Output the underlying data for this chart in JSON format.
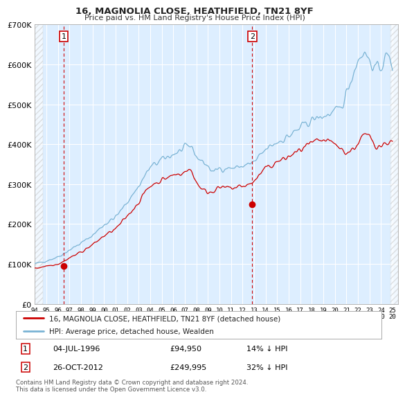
{
  "title": "16, MAGNOLIA CLOSE, HEATHFIELD, TN21 8YF",
  "subtitle": "Price paid vs. HM Land Registry's House Price Index (HPI)",
  "legend_line1": "16, MAGNOLIA CLOSE, HEATHFIELD, TN21 8YF (detached house)",
  "legend_line2": "HPI: Average price, detached house, Wealden",
  "footer": "Contains HM Land Registry data © Crown copyright and database right 2024.\nThis data is licensed under the Open Government Licence v3.0.",
  "annotation1_label": "1",
  "annotation1_date": "04-JUL-1996",
  "annotation1_price": "£94,950",
  "annotation1_hpi": "14% ↓ HPI",
  "annotation2_label": "2",
  "annotation2_date": "26-OCT-2012",
  "annotation2_price": "£249,995",
  "annotation2_hpi": "32% ↓ HPI",
  "hpi_color": "#7ab3d4",
  "price_color": "#cc0000",
  "marker_color": "#cc0000",
  "background_color": "#ffffff",
  "plot_bg_color": "#ddeeff",
  "grid_color": "#ffffff",
  "ylim": [
    0,
    700000
  ],
  "xlim_start": 1994.0,
  "xlim_end": 2025.5,
  "point1_x": 1996.5,
  "point1_y": 94950,
  "point2_x": 2012.83,
  "point2_y": 249995,
  "yticks": [
    0,
    100000,
    200000,
    300000,
    400000,
    500000,
    600000,
    700000
  ],
  "yticklabels": [
    "£0",
    "£100K",
    "£200K",
    "£300K",
    "£400K",
    "£500K",
    "£600K",
    "£700K"
  ]
}
